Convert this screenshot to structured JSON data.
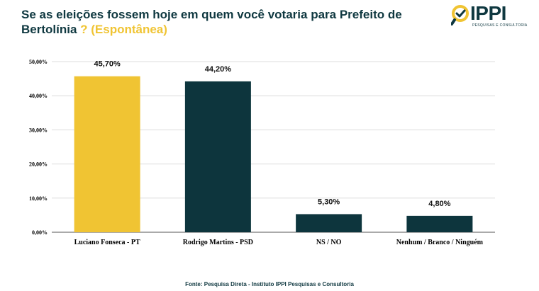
{
  "header": {
    "title_main": "Se as eleições fossem hoje em quem você votaria para Prefeito de Bertolínia",
    "title_accent": "? (Espontânea)"
  },
  "logo": {
    "name": "IPPI",
    "subtitle": "PESQUISAS E CONSULTORIA",
    "icon": "magnifier-check-icon",
    "colors": {
      "ring": "#f0c433",
      "text": "#0f3840"
    }
  },
  "footer": {
    "source": "Fonte: Pesquisa Direta - Instituto IPPI Pesquisas e Consultoria"
  },
  "chart_data": {
    "type": "bar",
    "title": "Se as eleições fossem hoje em quem você votaria para Prefeito de Bertolínia ? (Espontânea)",
    "xlabel": "",
    "ylabel": "",
    "categories": [
      "Luciano Fonseca - PT",
      "Rodrigo Martins - PSD",
      "NS / NO",
      "Nenhum / Branco / Ninguém"
    ],
    "values": [
      45.7,
      44.2,
      5.3,
      4.8
    ],
    "value_labels": [
      "45,70%",
      "44,20%",
      "5,30%",
      "4,80%"
    ],
    "colors": [
      "#f0c433",
      "#0d353d",
      "#0d353d",
      "#0d353d"
    ],
    "ylim": [
      0,
      50
    ],
    "yticks": [
      0,
      10,
      20,
      30,
      40,
      50
    ],
    "ytick_labels": [
      "0,00%",
      "10,00%",
      "20,00%",
      "30,00%",
      "40,00%",
      "50,00%"
    ],
    "grid": true,
    "legend": "none"
  }
}
